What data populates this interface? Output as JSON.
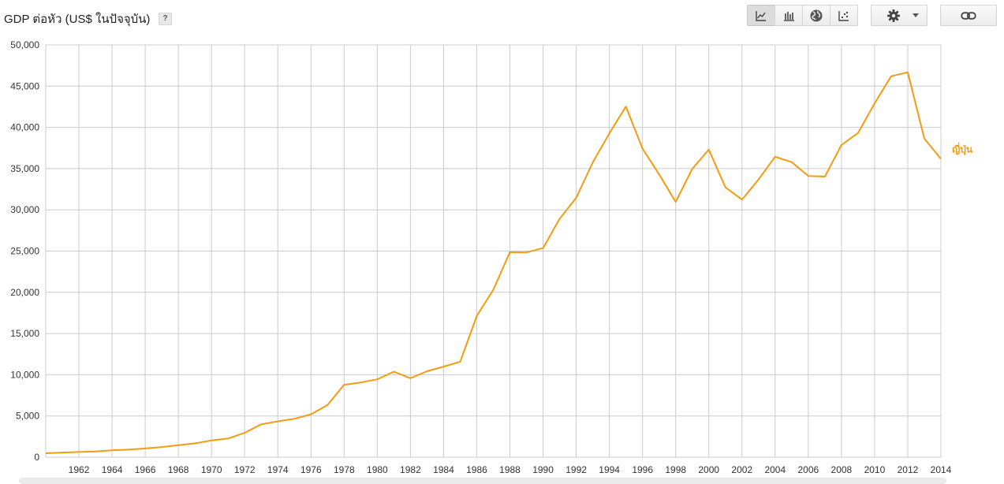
{
  "header": {
    "title": "GDP ต่อหัว (US$ ในปัจจุบัน)",
    "help_label": "?"
  },
  "toolbar": {
    "chart_types": [
      {
        "name": "line-chart",
        "icon": "line-chart-icon",
        "active": true
      },
      {
        "name": "bar-chart",
        "icon": "bar-chart-icon",
        "active": false
      },
      {
        "name": "map",
        "icon": "globe-icon",
        "active": false
      },
      {
        "name": "scatter",
        "icon": "scatter-icon",
        "active": false
      }
    ],
    "settings_icon": "gear-icon",
    "dropdown_icon": "caret-down-icon",
    "link_icon": "link-icon"
  },
  "chart_data": {
    "type": "line",
    "series": [
      {
        "name": "ญี่ปุ่น",
        "color": "#f39c12",
        "x": [
          1960,
          1961,
          1962,
          1963,
          1964,
          1965,
          1966,
          1967,
          1968,
          1969,
          1970,
          1971,
          1972,
          1973,
          1974,
          1975,
          1976,
          1977,
          1978,
          1979,
          1980,
          1981,
          1982,
          1983,
          1984,
          1985,
          1986,
          1987,
          1988,
          1989,
          1990,
          1991,
          1992,
          1993,
          1994,
          1995,
          1996,
          1997,
          1998,
          1999,
          2000,
          2001,
          2002,
          2003,
          2004,
          2005,
          2006,
          2007,
          2008,
          2009,
          2010,
          2011,
          2012,
          2013,
          2014
        ],
        "values": [
          480,
          560,
          630,
          700,
          840,
          920,
          1060,
          1230,
          1450,
          1670,
          2040,
          2270,
          2950,
          3990,
          4350,
          4660,
          5200,
          6340,
          8790,
          9060,
          9450,
          10370,
          9580,
          10420,
          10980,
          11580,
          17120,
          20320,
          24860,
          24840,
          25360,
          28920,
          31460,
          35760,
          39270,
          42520,
          37420,
          34300,
          30970,
          34960,
          37300,
          32720,
          31240,
          33690,
          36440,
          35780,
          34100,
          34030,
          37870,
          39320,
          42910,
          46200,
          46680,
          38630,
          36190
        ]
      }
    ],
    "ylim": [
      0,
      50000
    ],
    "xlim": [
      1960,
      2014
    ],
    "yticks": [
      "0",
      "5,000",
      "10,000",
      "15,000",
      "20,000",
      "25,000",
      "30,000",
      "35,000",
      "40,000",
      "45,000",
      "50,000"
    ],
    "xtick_years": [
      1962,
      1964,
      1966,
      1968,
      1970,
      1972,
      1974,
      1976,
      1978,
      1980,
      1982,
      1984,
      1986,
      1988,
      1990,
      1992,
      1994,
      1996,
      1998,
      2000,
      2002,
      2004,
      2006,
      2008,
      2010,
      2012,
      2014
    ],
    "grid": true,
    "legend": "right-of-line-end"
  }
}
